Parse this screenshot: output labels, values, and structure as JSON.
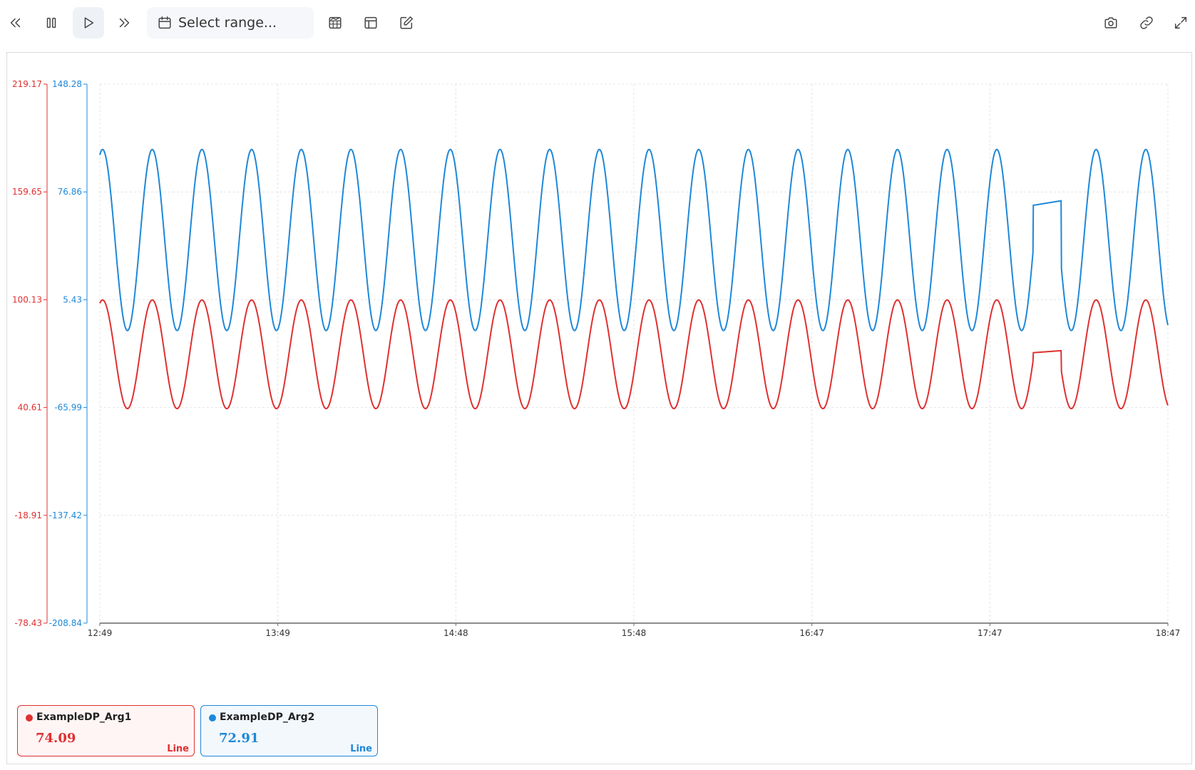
{
  "toolbar": {
    "range_placeholder": "Select range..."
  },
  "icons": {
    "rewind": "double-chevron-left-icon",
    "pause": "pause-icon",
    "play": "play-icon",
    "forward": "double-chevron-right-icon",
    "calendar": "calendar-icon",
    "table_chart": "table-chart-icon",
    "table": "table-icon",
    "edit": "edit-icon",
    "camera": "camera-icon",
    "link": "link-icon",
    "expand": "expand-icon"
  },
  "colors": {
    "series1": "#e03030",
    "series2": "#1e88d8",
    "grid": "#e4e4e4",
    "axis": "#666666"
  },
  "chart_data": {
    "type": "line",
    "x_ticks": [
      "12:49",
      "13:49",
      "14:48",
      "15:48",
      "16:47",
      "17:47",
      "18:47"
    ],
    "y_axes": [
      {
        "ticks": [
          "219.17",
          "159.65",
          "100.13",
          "40.61",
          "-18.91",
          "-78.43"
        ],
        "ylim": [
          -78.43,
          219.17
        ],
        "color": "#e03030"
      },
      {
        "ticks": [
          "148.28",
          "76.86",
          "5.43",
          "-65.99",
          "-137.42",
          "-208.84"
        ],
        "ylim": [
          -208.84,
          148.28
        ],
        "color": "#1e88d8"
      }
    ],
    "series": [
      {
        "name": "ExampleDP_Arg1",
        "color": "#e03030",
        "axis": 0,
        "current_value": "74.09",
        "type_label": "Line",
        "min": 40,
        "max": 100,
        "cycles": 21.5,
        "glitch": {
          "start": 0.874,
          "end": 0.9,
          "start_value": 70.9,
          "end_value": 72
        }
      },
      {
        "name": "ExampleDP_Arg2",
        "color": "#1e88d8",
        "axis": 1,
        "current_value": "72.91",
        "type_label": "Line",
        "min": -15,
        "max": 105,
        "cycles": 21.5,
        "glitch": {
          "start": 0.874,
          "end": 0.9,
          "start_value": 68,
          "end_value": 71
        }
      }
    ],
    "grid": true,
    "legend_position": "bottom-left"
  }
}
